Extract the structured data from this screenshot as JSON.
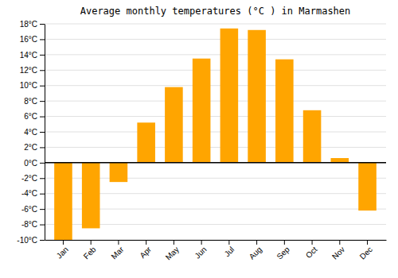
{
  "chart_data": {
    "type": "bar",
    "title": "Average monthly temperatures (°C ) in Marmashen",
    "categories": [
      "Jan",
      "Feb",
      "Mar",
      "Apr",
      "May",
      "Jun",
      "Jul",
      "Aug",
      "Sep",
      "Oct",
      "Nov",
      "Dec"
    ],
    "values": [
      -10,
      -8.5,
      -2.5,
      5.2,
      9.8,
      13.5,
      17.4,
      17.2,
      13.4,
      6.8,
      0.6,
      -6.2
    ],
    "color": "#FFA500",
    "ylim": [
      -10,
      18
    ],
    "yticks": [
      {
        "value": -10,
        "label": "-10°C"
      },
      {
        "value": -8,
        "label": "-8°C"
      },
      {
        "value": -6,
        "label": "-6°C"
      },
      {
        "value": -4,
        "label": "-4°C"
      },
      {
        "value": -2,
        "label": "-2°C"
      },
      {
        "value": 0,
        "label": "0°C"
      },
      {
        "value": 2,
        "label": "2°C"
      },
      {
        "value": 4,
        "label": "4°C"
      },
      {
        "value": 6,
        "label": "6°C"
      },
      {
        "value": 8,
        "label": "8°C"
      },
      {
        "value": 10,
        "label": "10°C"
      },
      {
        "value": 12,
        "label": "12°C"
      },
      {
        "value": 14,
        "label": "14°C"
      },
      {
        "value": 16,
        "label": "16°C"
      },
      {
        "value": 18,
        "label": "18°C"
      }
    ],
    "grid": true
  }
}
